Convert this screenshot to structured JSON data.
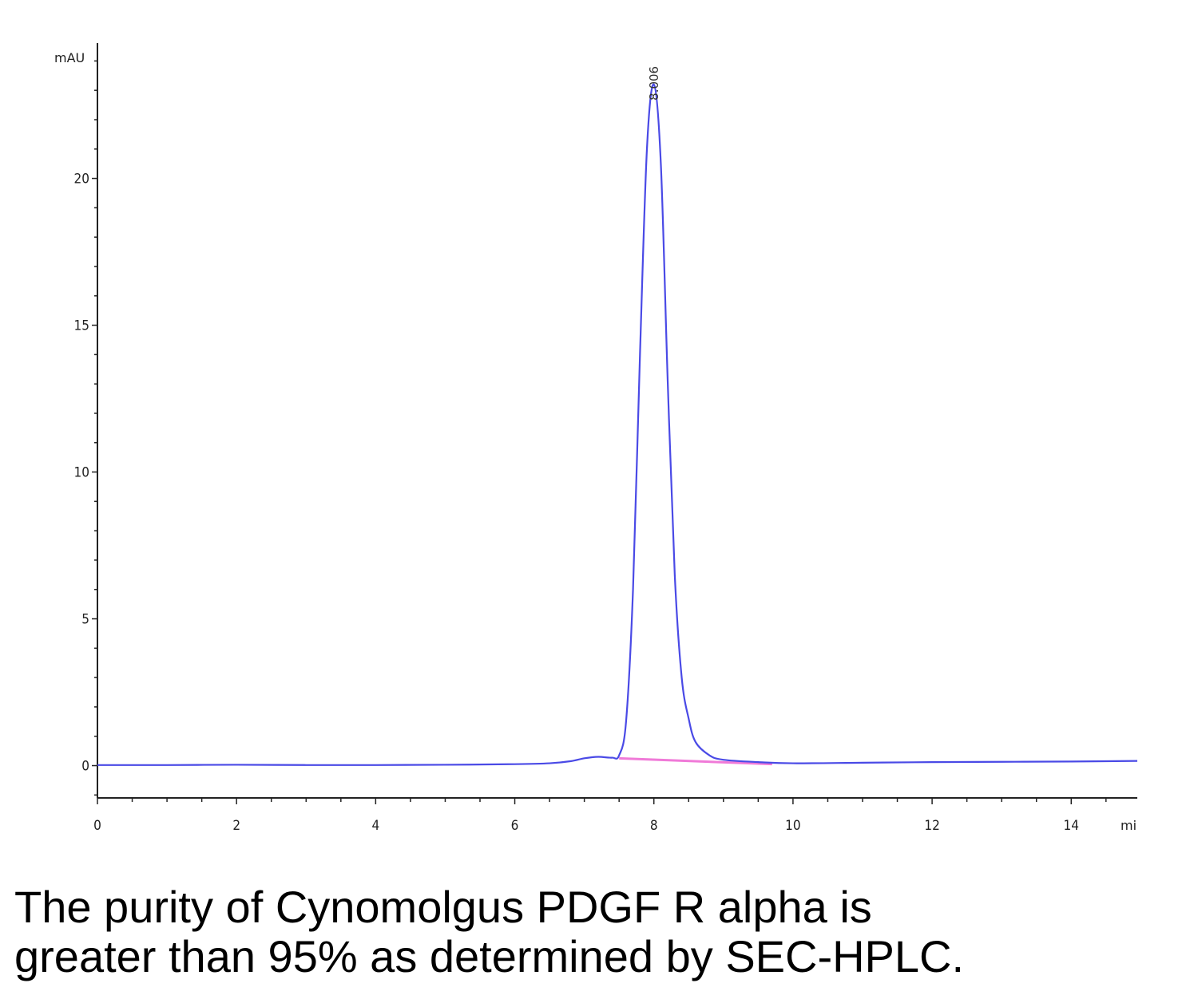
{
  "chart_data": {
    "type": "line",
    "ylabel": "mAU",
    "xlabel": "mi",
    "xlim": [
      0,
      14.95
    ],
    "ylim": [
      -1.1,
      24.5
    ],
    "x_ticks": [
      0,
      2,
      4,
      6,
      8,
      10,
      12,
      14
    ],
    "y_ticks": [
      0,
      5,
      10,
      15,
      20
    ],
    "peak_label": "8.006",
    "colors": {
      "trace": "#4a4ae6",
      "baseline": "#f07ad8",
      "axis": "#222222"
    },
    "series": [
      {
        "x": [
          0,
          1,
          2,
          3,
          4,
          5,
          6,
          6.5,
          6.8,
          7.0,
          7.2,
          7.4,
          7.5,
          7.6,
          7.7,
          7.8,
          7.9,
          8.0,
          8.1,
          8.2,
          8.3,
          8.4,
          8.5,
          8.6,
          8.8,
          9.0,
          9.5,
          10,
          11,
          12,
          13,
          14,
          14.95
        ],
        "y": [
          0.02,
          0.02,
          0.03,
          0.02,
          0.02,
          0.03,
          0.05,
          0.08,
          0.15,
          0.25,
          0.3,
          0.27,
          0.35,
          1.5,
          6.0,
          14.0,
          21.0,
          23.2,
          20.5,
          13.0,
          6.5,
          3.0,
          1.6,
          0.8,
          0.35,
          0.2,
          0.12,
          0.08,
          0.1,
          0.12,
          0.13,
          0.14,
          0.16
        ]
      }
    ],
    "integration_baseline": {
      "x": [
        7.5,
        9.7
      ],
      "y": [
        0.25,
        0.05
      ]
    }
  },
  "caption": {
    "line1": "The purity of Cynomolgus PDGF R alpha is",
    "line2": "greater than 95% as determined by SEC-HPLC."
  }
}
